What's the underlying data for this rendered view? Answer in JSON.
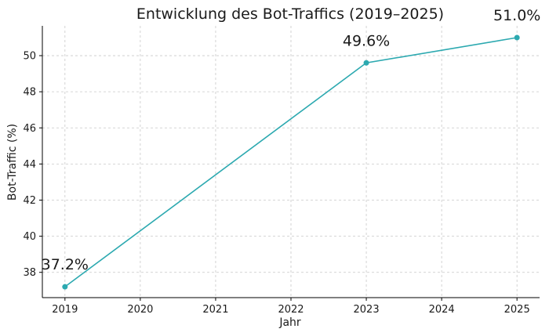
{
  "chart_data": {
    "type": "line",
    "title": "Entwicklung des Bot-Traffics (2019–2025)",
    "xlabel": "Jahr",
    "ylabel": "Bot-Traffic (%)",
    "x": [
      2019,
      2023,
      2025
    ],
    "values": [
      37.2,
      49.6,
      51.0
    ],
    "data_labels": [
      "37.2%",
      "49.6%",
      "51.0%"
    ],
    "xlim": [
      2018.7,
      2025.3
    ],
    "ylim": [
      36.6,
      51.65
    ],
    "x_ticks": [
      2019,
      2020,
      2021,
      2022,
      2023,
      2024,
      2025
    ],
    "y_ticks": [
      38,
      40,
      42,
      44,
      46,
      48,
      50
    ],
    "grid": true,
    "line_color": "#2ca9b0",
    "marker_color": "#2ca9b0"
  }
}
